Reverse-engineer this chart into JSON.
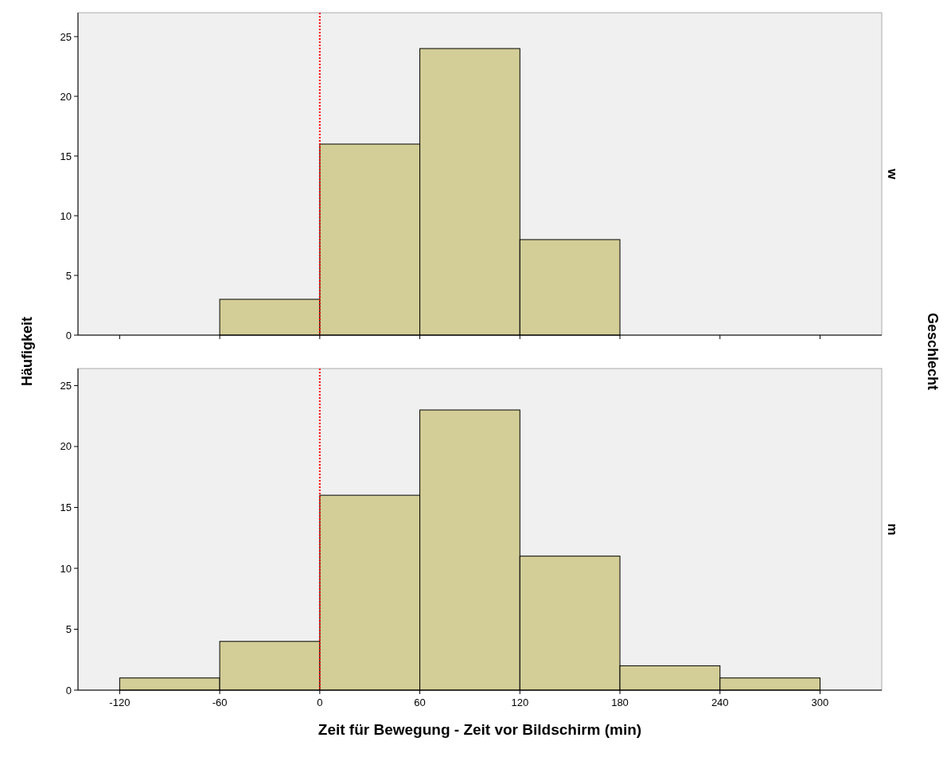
{
  "chart_data": [
    {
      "type": "histogram",
      "title": "w",
      "ylabel": "Häufigkeit",
      "y2label": "Geschlecht",
      "bins": [
        -60,
        0,
        60,
        120,
        180
      ],
      "values": [
        3,
        16,
        24,
        8
      ],
      "color": "#d3ce97",
      "xlim": [
        -145,
        337
      ],
      "xticks": [
        -120,
        -60,
        0,
        60,
        120,
        180,
        240,
        300
      ],
      "ylim": [
        0,
        27
      ],
      "yticks": [
        0,
        5,
        10,
        15,
        20,
        25
      ],
      "tick_labels": "y",
      "ref_lines": [
        {
          "axis": "x",
          "value": 0,
          "color": "#ff0000",
          "line_style": "dotted"
        }
      ]
    },
    {
      "type": "histogram",
      "title": "m",
      "xlabel": "Zeit für Bewegung - Zeit vor Bildschirm (min)",
      "bins": [
        -120,
        -60,
        0,
        60,
        120,
        180,
        240,
        300
      ],
      "values": [
        1,
        4,
        16,
        23,
        11,
        2,
        1
      ],
      "color": "#d3ce97",
      "xlim": [
        -145,
        337
      ],
      "xticks": [
        -120,
        -60,
        0,
        60,
        120,
        180,
        240,
        300
      ],
      "ylim": [
        0,
        26.4
      ],
      "yticks": [
        0,
        5,
        10,
        15,
        20,
        25
      ],
      "ref_lines": [
        {
          "axis": "x",
          "value": 0,
          "color": "#ff0000",
          "line_style": "dotted"
        }
      ]
    }
  ]
}
